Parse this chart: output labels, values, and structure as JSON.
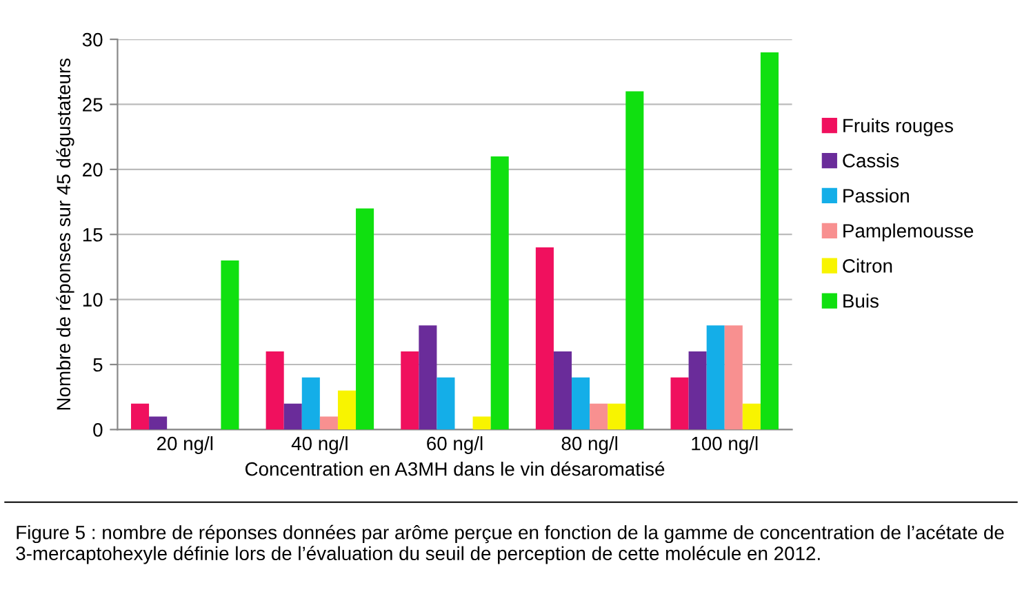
{
  "chart_data": {
    "type": "bar",
    "xlabel": "Concentration en A3MH dans le vin désaromatisé",
    "ylabel": "Nombre de réponses sur 45 dégustateurs",
    "categories": [
      "20 ng/l",
      "40 ng/l",
      "60 ng/l",
      "80 ng/l",
      "100 ng/l"
    ],
    "series": [
      {
        "name": "Fruits rouges",
        "color": "#f0105e",
        "values": [
          2,
          6,
          6,
          14,
          4
        ]
      },
      {
        "name": "Cassis",
        "color": "#6a2c9a",
        "values": [
          1,
          2,
          8,
          6,
          6
        ]
      },
      {
        "name": "Passion",
        "color": "#14aee8",
        "values": [
          0,
          4,
          4,
          4,
          8
        ]
      },
      {
        "name": "Pamplemousse",
        "color": "#f89090",
        "values": [
          0,
          1,
          0,
          2,
          8
        ]
      },
      {
        "name": "Citron",
        "color": "#f8f400",
        "values": [
          0,
          3,
          1,
          2,
          2
        ]
      },
      {
        "name": "Buis",
        "color": "#10e010",
        "values": [
          13,
          17,
          21,
          26,
          29
        ]
      }
    ],
    "ylim": [
      0,
      30
    ],
    "yticks": [
      0,
      5,
      10,
      15,
      20,
      25,
      30
    ],
    "grid": "y",
    "legend": "right",
    "annotations": [
      "Figure 5 : nombre de réponses données par arôme perçue en fonction de la gamme de concentration de l’acétate de 3-mercaptohexyle définie lors de l’évaluation du seuil de perception de cette molécule en 2012."
    ]
  }
}
